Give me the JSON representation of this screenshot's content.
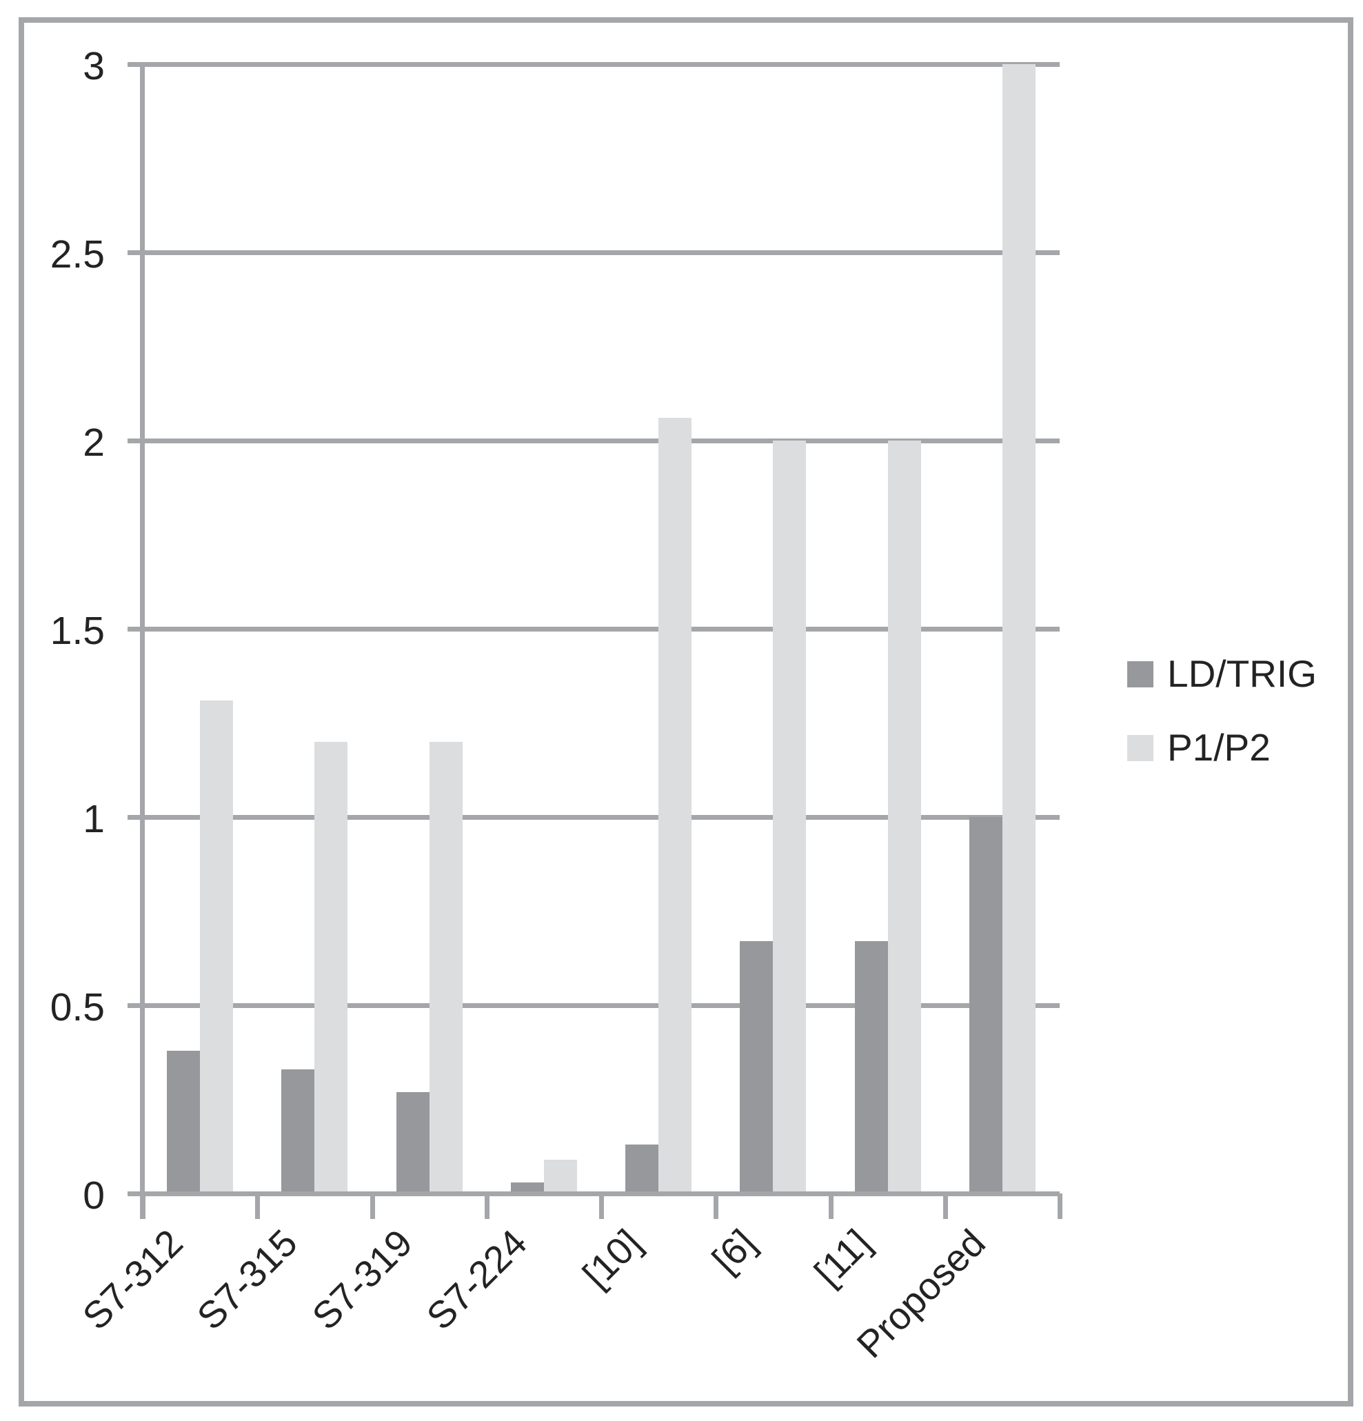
{
  "figure": {
    "background": "#ffffff",
    "border_color": "#a4a6a9",
    "grid_color": "#a4a6a9",
    "text_color": "#232323"
  },
  "chart_data": {
    "type": "bar",
    "title": "",
    "xlabel": "",
    "ylabel": "",
    "categories": [
      "S7-312",
      "S7-315",
      "S7-319",
      "S7-224",
      "[10]",
      "[6]",
      "[11]",
      "Proposed"
    ],
    "series": [
      {
        "name": "LD/TRIG",
        "color": "#96989b",
        "values": [
          0.38,
          0.33,
          0.27,
          0.03,
          0.13,
          0.67,
          0.67,
          1.0
        ]
      },
      {
        "name": "P1/P2",
        "color": "#dcdddf",
        "values": [
          1.31,
          1.2,
          1.2,
          0.09,
          2.06,
          2.0,
          2.0,
          3.0
        ]
      }
    ],
    "y_ticks": [
      0,
      0.5,
      1,
      1.5,
      2,
      2.5,
      3
    ],
    "y_tick_labels": [
      "0",
      "0.5",
      "1",
      "1.5",
      "2",
      "2.5",
      "3"
    ],
    "ylim": [
      0,
      3
    ],
    "grid": true,
    "legend_position": "right"
  }
}
